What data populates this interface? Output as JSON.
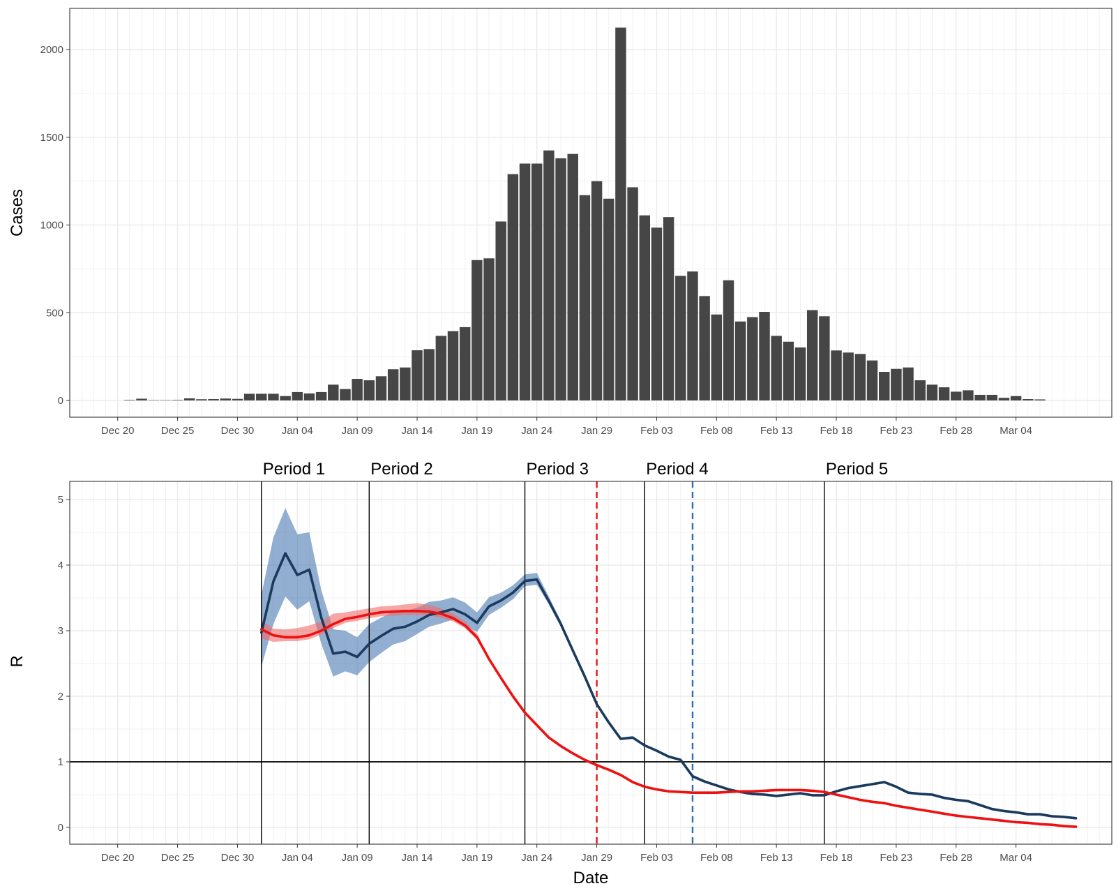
{
  "chart_data": [
    {
      "type": "bar",
      "ylabel": "Cases",
      "xlabel": "",
      "ylim": [
        0,
        2100
      ],
      "yticks": [
        0,
        500,
        1000,
        1500,
        2000
      ],
      "xlim": [
        "2019-12-16",
        "2020-03-12"
      ],
      "x_ticks": [
        {
          "date": "2019-12-20",
          "label": "Dec 20"
        },
        {
          "date": "2019-12-25",
          "label": "Dec 25"
        },
        {
          "date": "2019-12-30",
          "label": "Dec 30"
        },
        {
          "date": "2020-01-04",
          "label": "Jan 04"
        },
        {
          "date": "2020-01-09",
          "label": "Jan 09"
        },
        {
          "date": "2020-01-14",
          "label": "Jan 14"
        },
        {
          "date": "2020-01-19",
          "label": "Jan 19"
        },
        {
          "date": "2020-01-24",
          "label": "Jan 24"
        },
        {
          "date": "2020-01-29",
          "label": "Jan 29"
        },
        {
          "date": "2020-02-03",
          "label": "Feb 03"
        },
        {
          "date": "2020-02-08",
          "label": "Feb 08"
        },
        {
          "date": "2020-02-13",
          "label": "Feb 13"
        },
        {
          "date": "2020-02-18",
          "label": "Feb 18"
        },
        {
          "date": "2020-02-23",
          "label": "Feb 23"
        },
        {
          "date": "2020-02-28",
          "label": "Feb 28"
        },
        {
          "date": "2020-03-04",
          "label": "Mar 04"
        }
      ],
      "grid": true,
      "bar_color": "#464646",
      "start_date": "2019-12-21",
      "values": [
        3,
        10,
        2,
        2,
        3,
        12,
        7,
        8,
        11,
        9,
        38,
        38,
        38,
        25,
        48,
        40,
        48,
        90,
        65,
        123,
        115,
        138,
        178,
        188,
        286,
        293,
        368,
        395,
        418,
        800,
        810,
        1020,
        1290,
        1350,
        1350,
        1425,
        1380,
        1405,
        1170,
        1250,
        1150,
        2125,
        1215,
        1055,
        985,
        1045,
        710,
        735,
        595,
        490,
        685,
        450,
        475,
        505,
        368,
        335,
        302,
        515,
        480,
        285,
        273,
        265,
        228,
        163,
        180,
        188,
        115,
        90,
        75,
        50,
        58,
        32,
        32,
        15,
        25,
        8,
        6
      ]
    },
    {
      "type": "line",
      "ylabel": "R",
      "xlabel": "Date",
      "ylim": [
        0,
        5
      ],
      "yticks": [
        0,
        1,
        2,
        3,
        4,
        5
      ],
      "xlim": [
        "2019-12-16",
        "2020-03-12"
      ],
      "x_ticks": [
        {
          "date": "2019-12-20",
          "label": "Dec 20"
        },
        {
          "date": "2019-12-25",
          "label": "Dec 25"
        },
        {
          "date": "2019-12-30",
          "label": "Dec 30"
        },
        {
          "date": "2020-01-04",
          "label": "Jan 04"
        },
        {
          "date": "2020-01-09",
          "label": "Jan 09"
        },
        {
          "date": "2020-01-14",
          "label": "Jan 14"
        },
        {
          "date": "2020-01-19",
          "label": "Jan 19"
        },
        {
          "date": "2020-01-24",
          "label": "Jan 24"
        },
        {
          "date": "2020-01-29",
          "label": "Jan 29"
        },
        {
          "date": "2020-02-03",
          "label": "Feb 03"
        },
        {
          "date": "2020-02-08",
          "label": "Feb 08"
        },
        {
          "date": "2020-02-13",
          "label": "Feb 13"
        },
        {
          "date": "2020-02-18",
          "label": "Feb 18"
        },
        {
          "date": "2020-02-23",
          "label": "Feb 23"
        },
        {
          "date": "2020-02-28",
          "label": "Feb 28"
        },
        {
          "date": "2020-03-04",
          "label": "Mar 04"
        }
      ],
      "grid": true,
      "reference_line_y": 1,
      "periods": [
        {
          "label": "Period 1",
          "date": "2020-01-01"
        },
        {
          "label": "Period 2",
          "date": "2020-01-10"
        },
        {
          "label": "Period 3",
          "date": "2020-01-23"
        },
        {
          "label": "Period 4",
          "date": "2020-02-02"
        },
        {
          "label": "Period 5",
          "date": "2020-02-17"
        }
      ],
      "dashed_lines": [
        {
          "date": "2020-01-29",
          "color": "#ee1111"
        },
        {
          "date": "2020-02-06",
          "color": "#2e6db4"
        }
      ],
      "series": [
        {
          "color": "#1a3a5e",
          "band_color": "#4a78b0",
          "start_date": "2020-01-01",
          "values": [
            2.97,
            3.75,
            4.18,
            3.85,
            3.93,
            3.2,
            2.65,
            2.68,
            2.6,
            2.8,
            2.92,
            3.03,
            3.06,
            3.14,
            3.24,
            3.28,
            3.33,
            3.25,
            3.12,
            3.37,
            3.46,
            3.58,
            3.76,
            3.78,
            3.45,
            3.1,
            2.7,
            2.3,
            1.88,
            1.6,
            1.35,
            1.37,
            1.25,
            1.17,
            1.08,
            1.03,
            0.78,
            0.7,
            0.64,
            0.58,
            0.54,
            0.51,
            0.5,
            0.48,
            0.5,
            0.52,
            0.49,
            0.49,
            0.55,
            0.6,
            0.63,
            0.66,
            0.69,
            0.62,
            0.53,
            0.51,
            0.5,
            0.45,
            0.42,
            0.4,
            0.34,
            0.28,
            0.25,
            0.23,
            0.2,
            0.2,
            0.17,
            0.16,
            0.14
          ],
          "lower": [
            2.45,
            3.1,
            3.52,
            3.32,
            3.45,
            2.8,
            2.3,
            2.38,
            2.32,
            2.52,
            2.66,
            2.79,
            2.84,
            2.95,
            3.06,
            3.11,
            3.17,
            3.08,
            2.98,
            3.24,
            3.35,
            3.48,
            3.68,
            3.7,
            3.4,
            3.06,
            2.67,
            2.28,
            1.86,
            1.58,
            1.34,
            1.36,
            1.24,
            1.16,
            1.07,
            1.02,
            0.77,
            0.69,
            0.63,
            0.57,
            0.53,
            0.5,
            0.49,
            0.47,
            0.49,
            0.51,
            0.48,
            0.48,
            0.54,
            0.59,
            0.62,
            0.65,
            0.68,
            0.61,
            0.52,
            0.5,
            0.49,
            0.44,
            0.41,
            0.39,
            0.33,
            0.27,
            0.24,
            0.22,
            0.19,
            0.19,
            0.16,
            0.15,
            0.13
          ],
          "upper": [
            3.55,
            4.42,
            4.87,
            4.47,
            4.5,
            3.62,
            3.02,
            3.0,
            2.9,
            3.1,
            3.2,
            3.29,
            3.3,
            3.35,
            3.44,
            3.46,
            3.51,
            3.43,
            3.28,
            3.51,
            3.58,
            3.69,
            3.86,
            3.88,
            3.52,
            3.15,
            2.74,
            2.33,
            1.91,
            1.62,
            1.37,
            1.39,
            1.27,
            1.19,
            1.1,
            1.05,
            0.8,
            0.72,
            0.66,
            0.6,
            0.56,
            0.53,
            0.52,
            0.5,
            0.52,
            0.54,
            0.51,
            0.51,
            0.57,
            0.62,
            0.65,
            0.68,
            0.71,
            0.64,
            0.55,
            0.53,
            0.52,
            0.47,
            0.44,
            0.42,
            0.36,
            0.3,
            0.27,
            0.25,
            0.22,
            0.22,
            0.19,
            0.18,
            0.16
          ]
        },
        {
          "color": "#ee1111",
          "band_color": "#f26a6a",
          "start_date": "2020-01-01",
          "values": [
            3.02,
            2.93,
            2.9,
            2.9,
            2.93,
            3.0,
            3.1,
            3.18,
            3.21,
            3.25,
            3.28,
            3.29,
            3.3,
            3.3,
            3.29,
            3.26,
            3.19,
            3.08,
            2.9,
            2.57,
            2.28,
            2.0,
            1.75,
            1.56,
            1.37,
            1.24,
            1.13,
            1.03,
            0.95,
            0.88,
            0.8,
            0.69,
            0.62,
            0.58,
            0.55,
            0.54,
            0.53,
            0.53,
            0.53,
            0.54,
            0.55,
            0.55,
            0.56,
            0.57,
            0.57,
            0.57,
            0.56,
            0.54,
            0.5,
            0.46,
            0.42,
            0.39,
            0.37,
            0.33,
            0.3,
            0.27,
            0.24,
            0.21,
            0.18,
            0.16,
            0.14,
            0.12,
            0.1,
            0.08,
            0.07,
            0.05,
            0.04,
            0.02,
            0.01
          ],
          "lower": [
            2.88,
            2.83,
            2.84,
            2.84,
            2.87,
            2.94,
            3.04,
            3.12,
            3.15,
            3.19,
            3.22,
            3.23,
            3.24,
            3.24,
            3.23,
            3.2,
            3.14,
            3.04,
            2.86,
            2.55,
            2.26,
            1.98,
            1.73,
            1.54,
            1.36,
            1.23,
            1.12,
            1.02,
            0.94,
            0.87,
            0.79,
            0.68,
            0.61,
            0.57,
            0.54,
            0.53,
            0.52,
            0.52,
            0.52,
            0.53,
            0.54,
            0.54,
            0.55,
            0.56,
            0.56,
            0.56,
            0.55,
            0.53,
            0.49,
            0.45,
            0.41,
            0.38,
            0.36,
            0.32,
            0.29,
            0.26,
            0.23,
            0.2,
            0.17,
            0.15,
            0.13,
            0.11,
            0.09,
            0.07,
            0.06,
            0.04,
            0.03,
            0.01,
            0.0
          ],
          "upper": [
            3.16,
            3.03,
            3.02,
            3.04,
            3.08,
            3.14,
            3.26,
            3.28,
            3.31,
            3.34,
            3.37,
            3.38,
            3.4,
            3.42,
            3.39,
            3.34,
            3.26,
            3.14,
            2.95,
            2.6,
            2.31,
            2.02,
            1.77,
            1.58,
            1.38,
            1.25,
            1.14,
            1.04,
            0.96,
            0.89,
            0.81,
            0.7,
            0.63,
            0.59,
            0.56,
            0.55,
            0.54,
            0.54,
            0.54,
            0.55,
            0.56,
            0.56,
            0.57,
            0.58,
            0.58,
            0.58,
            0.57,
            0.55,
            0.51,
            0.47,
            0.43,
            0.4,
            0.38,
            0.34,
            0.31,
            0.28,
            0.25,
            0.22,
            0.19,
            0.17,
            0.15,
            0.13,
            0.11,
            0.09,
            0.08,
            0.06,
            0.05,
            0.03,
            0.02
          ]
        }
      ]
    }
  ]
}
